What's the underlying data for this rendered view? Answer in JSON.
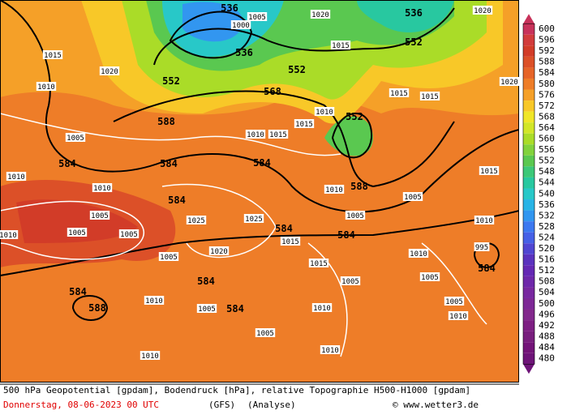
{
  "colorbar": {
    "labels": [
      600,
      596,
      592,
      588,
      584,
      580,
      576,
      572,
      568,
      564,
      560,
      556,
      552,
      548,
      544,
      540,
      536,
      532,
      528,
      524,
      520,
      516,
      512,
      508,
      504,
      500,
      496,
      492,
      488,
      484,
      480
    ]
  },
  "map": {
    "geopotential_labels": [
      536,
      536,
      552,
      552,
      552,
      536,
      568,
      588,
      552,
      584,
      584,
      584,
      584,
      588,
      584,
      584,
      584,
      584,
      584,
      588,
      584
    ],
    "pressure_labels": [
      1015,
      1020,
      1010,
      1005,
      1010,
      1010,
      1005,
      1005,
      1005,
      1005,
      1010,
      1010,
      1005,
      1005,
      1010,
      1010,
      1005,
      1015,
      1015,
      1020,
      1025,
      1025,
      1010,
      1015,
      1010,
      1005,
      1005,
      1010,
      1015,
      1010,
      1005,
      1020,
      1020,
      1015,
      1015,
      1010,
      1015,
      1015,
      1020,
      1000,
      1005,
      1010,
      1010,
      1005,
      995
    ]
  },
  "footer": {
    "line1": "500 hPa Geopotential [gpdam], Bodendruck [hPa], relative Topographie H500-H1000 [gpdam]",
    "date": "Donnerstag, 08-06-2023  00 UTC",
    "model": "(GFS)",
    "analysis": "(Analyse)",
    "credit": "© www.wetter3.de"
  }
}
